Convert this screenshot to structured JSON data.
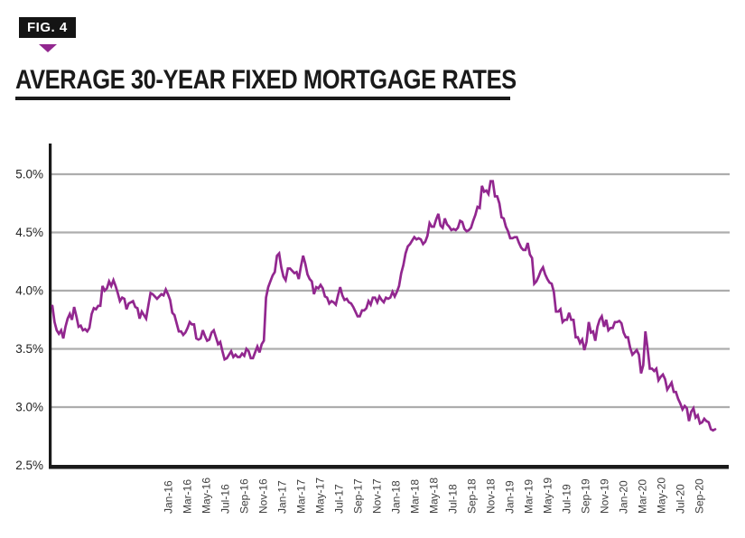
{
  "figure": {
    "label": "FIG. 4"
  },
  "title": "AVERAGE 30-YEAR FIXED MORTGAGE RATES",
  "colors": {
    "accent_purple": "#92278F",
    "line": "#92278F",
    "grid": "#ADADAD",
    "axis": "#1A1A1A",
    "y_tick_text": "#222222",
    "x_tick_text": "#3D3D3D"
  },
  "chart_data": {
    "type": "line",
    "title": "AVERAGE 30-YEAR FIXED MORTGAGE RATES",
    "x_frequency": "weekly",
    "x_tick_labels": [
      "Jan-16",
      "Mar-16",
      "May-16",
      "Jul-16",
      "Sep-16",
      "Nov-16",
      "Jan-17",
      "Mar-17",
      "May-17",
      "Jul-17",
      "Sep-17",
      "Nov-17",
      "Jan-18",
      "Mar-18",
      "May-18",
      "Jul-18",
      "Sep-18",
      "Nov-18",
      "Jan-19",
      "Mar-19",
      "May-19",
      "Jul-19",
      "Sep-19",
      "Nov-19",
      "Jan-20",
      "Mar-20",
      "May-20",
      "Jul-20",
      "Sep-20"
    ],
    "y_tick_labels": [
      "5.0%",
      "4.5%",
      "4.0%",
      "3.5%",
      "3.0%",
      "2.5%"
    ],
    "y_tick_values": [
      5.0,
      4.5,
      4.0,
      3.5,
      3.0,
      2.5
    ],
    "ylim": [
      2.5,
      5.0
    ],
    "grid": "horizontal",
    "legend": "none",
    "series": [
      {
        "name": "Average 30-year fixed mortgage rate (%)",
        "values": [
          3.87,
          3.73,
          3.66,
          3.63,
          3.66,
          3.59,
          3.69,
          3.76,
          3.8,
          3.75,
          3.86,
          3.78,
          3.69,
          3.7,
          3.66,
          3.67,
          3.65,
          3.68,
          3.8,
          3.85,
          3.84,
          3.87,
          3.87,
          4.04,
          4.0,
          4.02,
          4.08,
          4.04,
          4.09,
          4.04,
          3.98,
          3.91,
          3.94,
          3.93,
          3.84,
          3.89,
          3.9,
          3.91,
          3.86,
          3.85,
          3.76,
          3.82,
          3.79,
          3.76,
          3.87,
          3.98,
          3.97,
          3.95,
          3.93,
          3.95,
          3.97,
          3.96,
          4.01,
          3.97,
          3.92,
          3.81,
          3.79,
          3.72,
          3.65,
          3.65,
          3.62,
          3.64,
          3.68,
          3.73,
          3.71,
          3.71,
          3.59,
          3.58,
          3.59,
          3.66,
          3.61,
          3.57,
          3.58,
          3.64,
          3.66,
          3.6,
          3.54,
          3.56,
          3.48,
          3.41,
          3.42,
          3.45,
          3.48,
          3.43,
          3.45,
          3.43,
          3.43,
          3.46,
          3.44,
          3.5,
          3.48,
          3.42,
          3.42,
          3.47,
          3.52,
          3.47,
          3.54,
          3.57,
          3.94,
          4.03,
          4.08,
          4.13,
          4.16,
          4.3,
          4.32,
          4.2,
          4.12,
          4.09,
          4.19,
          4.19,
          4.17,
          4.15,
          4.16,
          4.1,
          4.21,
          4.3,
          4.23,
          4.14,
          4.1,
          4.08,
          3.97,
          4.03,
          4.02,
          4.05,
          4.02,
          3.95,
          3.94,
          3.89,
          3.91,
          3.9,
          3.88,
          3.96,
          4.03,
          3.96,
          3.92,
          3.93,
          3.9,
          3.89,
          3.86,
          3.82,
          3.78,
          3.78,
          3.83,
          3.83,
          3.85,
          3.91,
          3.88,
          3.94,
          3.94,
          3.9,
          3.95,
          3.92,
          3.9,
          3.94,
          3.93,
          3.94,
          3.99,
          3.95,
          3.99,
          4.04,
          4.15,
          4.22,
          4.32,
          4.38,
          4.4,
          4.43,
          4.46,
          4.44,
          4.45,
          4.44,
          4.4,
          4.42,
          4.47,
          4.58,
          4.55,
          4.55,
          4.61,
          4.66,
          4.56,
          4.54,
          4.62,
          4.57,
          4.55,
          4.52,
          4.53,
          4.52,
          4.54,
          4.6,
          4.59,
          4.53,
          4.51,
          4.52,
          4.54,
          4.6,
          4.65,
          4.72,
          4.71,
          4.9,
          4.85,
          4.86,
          4.83,
          4.94,
          4.94,
          4.81,
          4.81,
          4.75,
          4.63,
          4.62,
          4.55,
          4.51,
          4.45,
          4.45,
          4.46,
          4.46,
          4.41,
          4.37,
          4.35,
          4.35,
          4.41,
          4.31,
          4.28,
          4.06,
          4.08,
          4.12,
          4.17,
          4.2,
          4.14,
          4.1,
          4.07,
          4.06,
          3.99,
          3.82,
          3.82,
          3.84,
          3.73,
          3.75,
          3.75,
          3.81,
          3.75,
          3.75,
          3.6,
          3.6,
          3.55,
          3.58,
          3.49,
          3.56,
          3.73,
          3.64,
          3.65,
          3.57,
          3.69,
          3.75,
          3.78,
          3.69,
          3.75,
          3.66,
          3.68,
          3.68,
          3.73,
          3.73,
          3.74,
          3.72,
          3.64,
          3.6,
          3.6,
          3.51,
          3.45,
          3.47,
          3.49,
          3.45,
          3.29,
          3.36,
          3.65,
          3.5,
          3.33,
          3.33,
          3.31,
          3.33,
          3.23,
          3.26,
          3.28,
          3.24,
          3.15,
          3.18,
          3.21,
          3.13,
          3.13,
          3.07,
          3.03,
          2.98,
          3.01,
          2.99,
          2.88,
          2.96,
          2.99,
          2.91,
          2.93,
          2.86,
          2.87,
          2.9,
          2.88,
          2.87,
          2.81,
          2.8,
          2.81
        ]
      }
    ]
  }
}
